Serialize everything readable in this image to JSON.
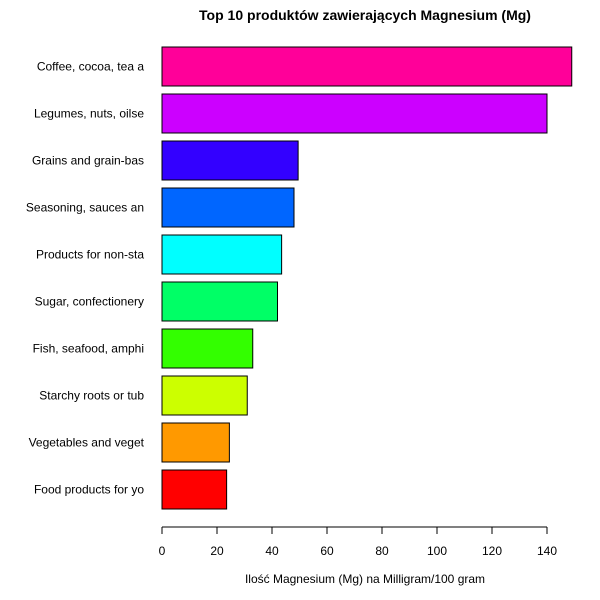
{
  "chart_data": {
    "type": "bar",
    "orientation": "horizontal",
    "title": "Top 10 produktów zawierających Magnesium (Mg)",
    "xlabel": "Ilość Magnesium (Mg) na Milligram/100 gram",
    "ylabel": "",
    "xlim": [
      0,
      150
    ],
    "xticks": [
      0,
      20,
      40,
      60,
      80,
      100,
      120,
      140
    ],
    "grid": false,
    "legend": "none",
    "categories": [
      "Coffee, cocoa, tea a",
      "Legumes, nuts, oilse",
      "Grains and grain-bas",
      "Seasoning, sauces an",
      "Products for non-sta",
      "Sugar, confectionery",
      "Fish, seafood, amphi",
      "Starchy roots or tub",
      "Vegetables and veget",
      "Food products for yo"
    ],
    "values": [
      149,
      140,
      49.5,
      48,
      43.5,
      42,
      33,
      31,
      24.5,
      23.5
    ],
    "colors": [
      "#FF0099",
      "#CC00FF",
      "#3300FF",
      "#0066FF",
      "#00FFFF",
      "#00FF66",
      "#33FF00",
      "#CCFF00",
      "#FF9900",
      "#FF0000"
    ]
  }
}
